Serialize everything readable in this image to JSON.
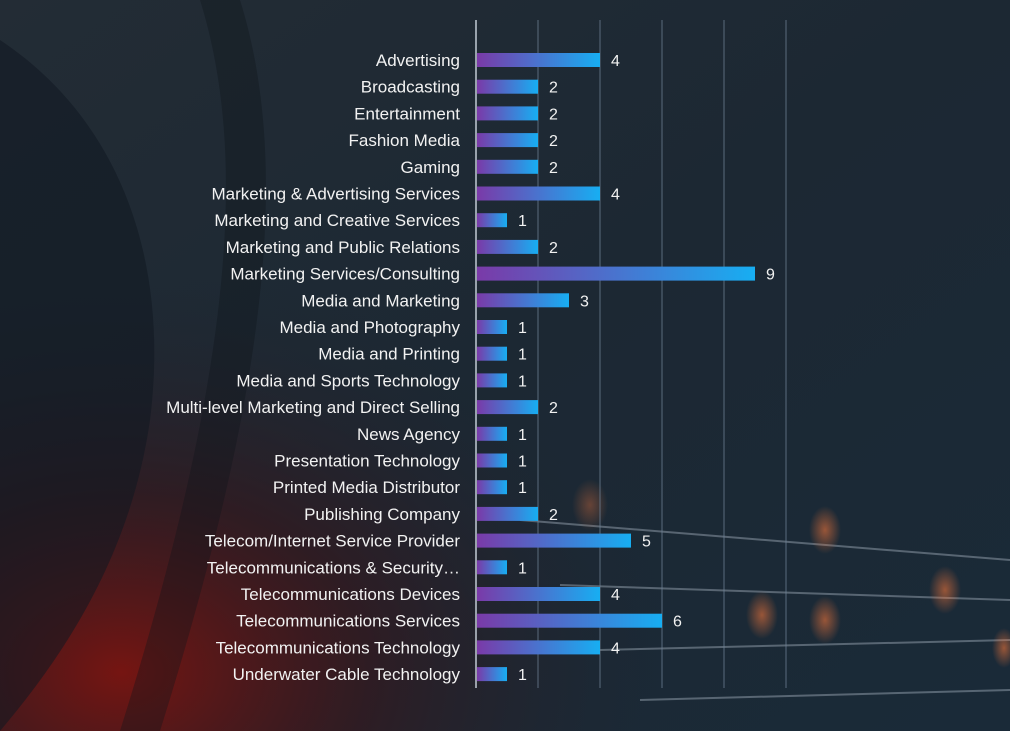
{
  "chart_data": {
    "type": "bar",
    "orientation": "horizontal",
    "categories": [
      "Advertising",
      "Broadcasting",
      "Entertainment",
      "Fashion Media",
      "Gaming",
      "Marketing & Advertising Services",
      "Marketing and Creative Services",
      "Marketing and Public Relations",
      "Marketing Services/Consulting",
      "Media and Marketing",
      "Media and Photography",
      "Media and Printing",
      "Media and Sports Technology",
      "Multi-level Marketing and Direct Selling",
      "News Agency",
      "Presentation Technology",
      "Printed Media Distributor",
      "Publishing Company",
      "Telecom/Internet Service Provider",
      "Telecommunications & Security…",
      "Telecommunications Devices",
      "Telecommunications Services",
      "Telecommunications Technology",
      "Underwater Cable Technology"
    ],
    "values": [
      4,
      2,
      2,
      2,
      2,
      4,
      1,
      2,
      9,
      3,
      1,
      1,
      1,
      2,
      1,
      1,
      1,
      2,
      5,
      1,
      4,
      6,
      4,
      1
    ],
    "title": "",
    "xlabel": "",
    "ylabel": "",
    "xlim": [
      0,
      10
    ],
    "grid": true,
    "data_labels": true,
    "colors": {
      "bar_start": "#7a3aa8",
      "bar_end": "#17aef2",
      "label": "#f2f2f2",
      "gridline": "#6f8296",
      "axis": "#c9d2dc"
    }
  }
}
